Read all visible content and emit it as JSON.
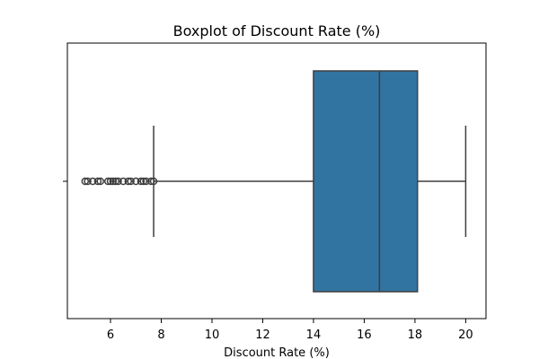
{
  "chart_data": {
    "type": "boxplot",
    "title": "Boxplot of Discount Rate (%)",
    "xlabel": "Discount Rate (%)",
    "ylabel": "",
    "xlim": [
      4.3,
      20.8
    ],
    "x_ticks": [
      6,
      8,
      10,
      12,
      14,
      16,
      18,
      20
    ],
    "x_tick_labels": [
      "6",
      "8",
      "10",
      "12",
      "14",
      "16",
      "18",
      "20"
    ],
    "grid": false,
    "series": [
      {
        "whisker_low": 7.7,
        "q1": 14.0,
        "median": 16.6,
        "q3": 18.1,
        "whisker_high": 20.0,
        "outliers": [
          5.0,
          5.1,
          5.3,
          5.5,
          5.6,
          5.9,
          6.0,
          6.1,
          6.2,
          6.3,
          6.5,
          6.7,
          6.8,
          7.0,
          7.2,
          7.3,
          7.4,
          7.6,
          7.7
        ]
      }
    ],
    "colors": {
      "box_fill": "#3274a1",
      "box_edge": "#3f3f3f",
      "median": "#3f3f3f",
      "whisker": "#3f3f3f",
      "outlier_edge": "#3f3f3f"
    }
  }
}
